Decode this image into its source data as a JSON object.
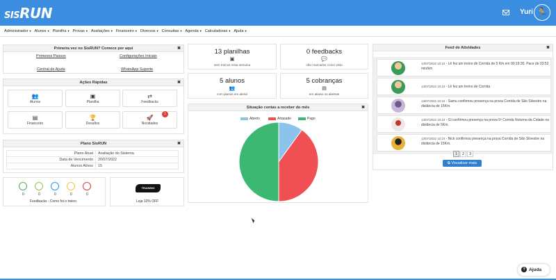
{
  "header": {
    "logo_sis": "SIS",
    "logo_run": "RUN",
    "user_name": "Yuri",
    "colors": {
      "primary": "#3b8de0"
    }
  },
  "menu": [
    {
      "label": "Administrador"
    },
    {
      "label": "Alunos"
    },
    {
      "label": "Planilha"
    },
    {
      "label": "Provas"
    },
    {
      "label": "Avaliações"
    },
    {
      "label": "Financeiro"
    },
    {
      "label": "Diversos"
    },
    {
      "label": "Consultas"
    },
    {
      "label": "Agenda"
    },
    {
      "label": "Calculadoras"
    },
    {
      "label": "Ajuda"
    }
  ],
  "first_time": {
    "title": "Primeira vez no SisRUN? Comece por aqui",
    "links": [
      "Primeiros Passos",
      "Configurações Iniciais",
      "Central de Ajuda",
      "WhatsApp Suporte"
    ]
  },
  "quick_actions": {
    "title": "Ações Rápidas",
    "items": [
      {
        "label": "Alunos",
        "icon": "users-icon"
      },
      {
        "label": "Planilha",
        "icon": "id-card-icon"
      },
      {
        "label": "Feedbacks",
        "icon": "retweet-icon"
      },
      {
        "label": "Financeiro",
        "icon": "money-icon"
      },
      {
        "label": "Desafios",
        "icon": "trophy-icon"
      },
      {
        "label": "Novidades",
        "icon": "rocket-icon",
        "badge": "1"
      }
    ]
  },
  "plano": {
    "title": "Plano SisRUN",
    "rows": [
      {
        "key": "Plano Atual",
        "value": "Avaliação do Sistema"
      },
      {
        "key": "Data de Vencimento",
        "value": "20/07/2022"
      },
      {
        "key": "Alunos Ativos",
        "value": "15"
      }
    ]
  },
  "feedbacks_faces": {
    "caption": "Feedbacks - Como foi o treino",
    "faces": [
      {
        "color": "#4caf50",
        "count": "0"
      },
      {
        "color": "#8bc34a",
        "count": "0"
      },
      {
        "color": "#2196f3",
        "count": "0"
      },
      {
        "color": "#f0c24b",
        "count": "0"
      },
      {
        "color": "#e53935",
        "count": "0"
      }
    ]
  },
  "loja": {
    "logo_text": "TRAINING",
    "caption": "Loja 10% OFF"
  },
  "stats": [
    {
      "number": "13 planilhas",
      "sub": "sem treinos essa semana",
      "icon": "id-card-icon"
    },
    {
      "number": "0 feedbacks",
      "sub": "não marcados como visto",
      "icon": "comments-icon"
    },
    {
      "number": "5 alunos",
      "sub": "com planos em alerta",
      "icon": "users-icon"
    },
    {
      "number": "5 cobranças",
      "sub": "em atraso ou abertas",
      "icon": "money-icon"
    }
  ],
  "chart_panel": {
    "title": "Situação contas a receber do mês"
  },
  "chart_data": {
    "type": "pie",
    "title": "Situação contas a receber do mês",
    "legend": "top",
    "series": [
      {
        "name": "Aberto",
        "value": 10,
        "color": "#8ac4ec"
      },
      {
        "name": "Atrasado",
        "value": 40,
        "color": "#f04f54"
      },
      {
        "name": "Pago",
        "value": 50,
        "color": "#3db873"
      }
    ]
  },
  "feed": {
    "title": "Feed de Atividades",
    "items": [
      {
        "ts": "13/07/2022 10:10",
        "text": " - Lê fez um treino de Corrida de 5 Km em 00:19:30. Pace de 03:53 min/km"
      },
      {
        "ts": "13/07/2022 10:10",
        "text": " - Lê fez um treino de Corrida"
      },
      {
        "ts": "13/07/2022 10:10",
        "text": " - Samu confirmou presença na prova Corrida de São Silvestre na distância de 15Km."
      },
      {
        "ts": "13/07/2022 10:10",
        "text": " - Gi confirmou presença na prova 5ª Corrida Noturna da Cidade na distância de 5Km."
      },
      {
        "ts": "13/07/2022 10:10",
        "text": " - Nick confirmou presença na prova Corrida de São Silvestre na distância de 15Km."
      }
    ],
    "pages": [
      "1",
      "2",
      "3"
    ],
    "view_more": "Visualizar mais"
  },
  "help": {
    "label": "Ajuda"
  }
}
